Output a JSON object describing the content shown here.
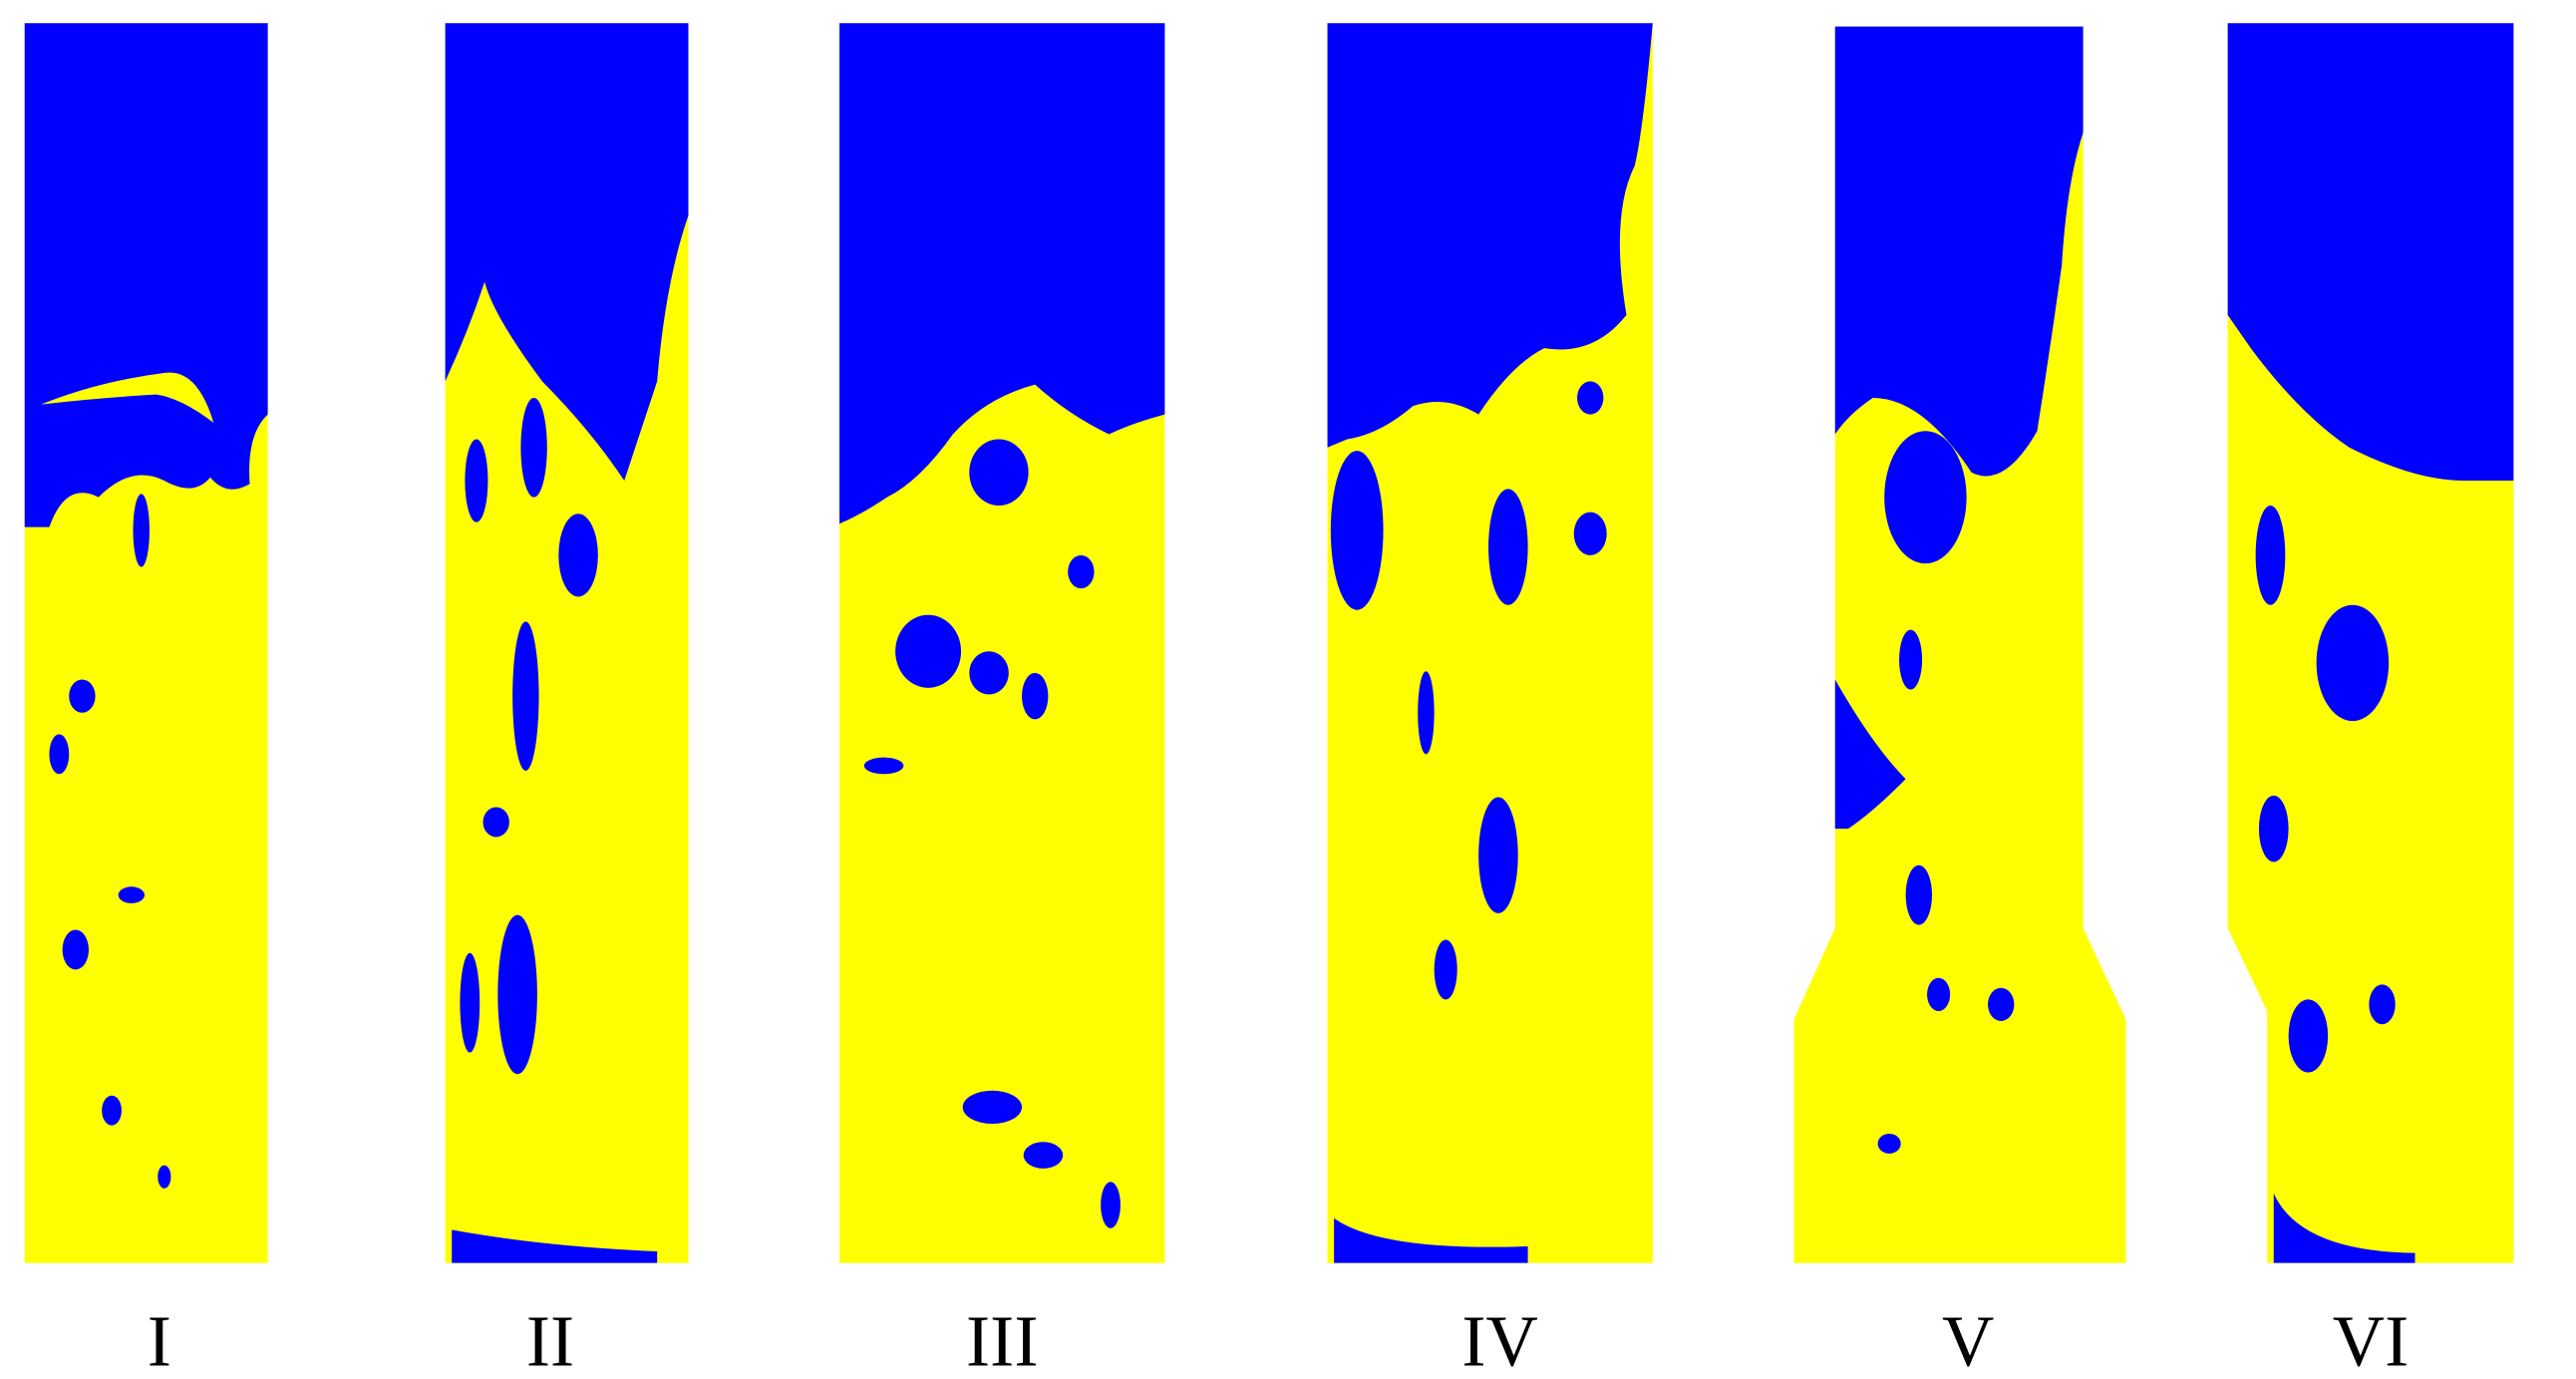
{
  "labels": [
    "I",
    "II",
    "III",
    "IV",
    "V",
    "VI"
  ]
}
